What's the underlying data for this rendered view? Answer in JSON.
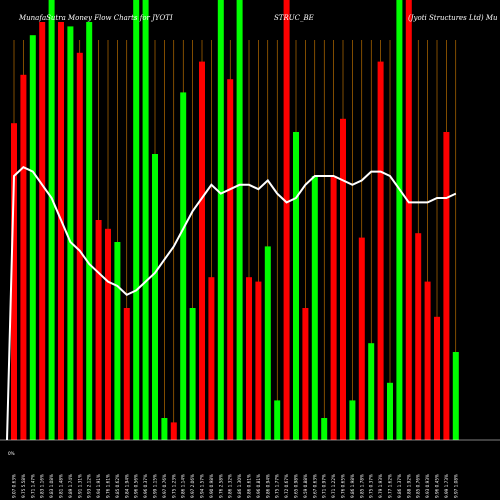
{
  "chart_data": {
    "type": "bar",
    "title_left": "MunafaSutra Money Flow Charts for JYOTI",
    "title_center": "STRUC_BE",
    "title_right": "(Jyoti Structures Ltd) Mu",
    "y_axis_label": "0%",
    "colors": {
      "background": "#000000",
      "up": "#00ff00",
      "down": "#ff0000",
      "divider": "#ff9900",
      "line": "#ffffff",
      "axis": "#ffffff"
    },
    "categories": [
      "9.07 0.63%",
      "9.75 5.58%",
      "9.71 1.47%",
      "9.83 1.16%",
      "9.83 1.08%",
      "9.81 1.48%",
      "9.89 1.74%",
      "9.91 1.31%",
      "9.93 2.12%",
      "9.94 1.91%",
      "9.76 1.61%",
      "9.85 0.62%",
      "9.84 1.94%",
      "9.96 0.56%",
      "9.96 0.37%",
      "9.99 1.15%",
      "9.97 0.76%",
      "9.75 1.23%",
      "9.86 1.14%",
      "9.97 2.06%",
      "9.94 1.57%",
      "9.90 0.98%",
      "9.76 2.58%",
      "9.86 1.32%",
      "9.86 1.30%",
      "9.86 0.61%",
      "9.96 0.81%",
      "9.86 0.94%",
      "9.75 1.77%",
      "9.72 0.67%",
      "9.65 0.98%",
      "9.59 0.88%",
      "9.67 0.63%",
      "9.71 0.97%",
      "9.71 1.22%",
      "9.76 0.65%",
      "9.86 1.98%",
      "9.85 1.78%",
      "9.75 0.37%",
      "9.79 1.93%",
      "9.77 1.62%",
      "9.86 1.37%",
      "9.88 1.92%",
      "9.85 0.76%",
      "9.93 0.93%",
      "9.96 0.45%",
      "9.99 1.73%",
      "9.97 1.08%"
    ],
    "values": [
      72,
      83,
      92,
      95,
      100,
      95,
      94,
      88,
      95,
      50,
      48,
      45,
      30,
      100,
      100,
      65,
      5,
      4,
      79,
      30,
      86,
      37,
      100,
      82,
      100,
      37,
      36,
      44,
      9,
      100,
      70,
      30,
      60,
      5,
      60,
      73,
      9,
      46,
      22,
      86,
      13,
      100,
      100,
      47,
      36,
      28,
      70,
      20
    ],
    "directions": [
      "down",
      "down",
      "up",
      "down",
      "up",
      "down",
      "up",
      "down",
      "up",
      "down",
      "down",
      "up",
      "down",
      "up",
      "up",
      "up",
      "up",
      "down",
      "up",
      "up",
      "down",
      "down",
      "up",
      "down",
      "up",
      "down",
      "down",
      "up",
      "up",
      "down",
      "up",
      "down",
      "up",
      "up",
      "down",
      "down",
      "up",
      "down",
      "up",
      "down",
      "up",
      "up",
      "down",
      "down",
      "down",
      "down",
      "down",
      "up"
    ],
    "line_values": [
      60,
      62,
      61,
      58,
      55,
      50,
      45,
      43,
      40,
      38,
      36,
      35,
      33,
      34,
      36,
      38,
      41,
      44,
      48,
      52,
      55,
      58,
      56,
      57,
      58,
      58,
      57,
      59,
      56,
      54,
      55,
      58,
      60,
      60,
      60,
      59,
      58,
      59,
      61,
      61,
      60,
      57,
      54,
      54,
      54,
      55,
      55,
      56
    ],
    "ylim": [
      0,
      100
    ]
  }
}
